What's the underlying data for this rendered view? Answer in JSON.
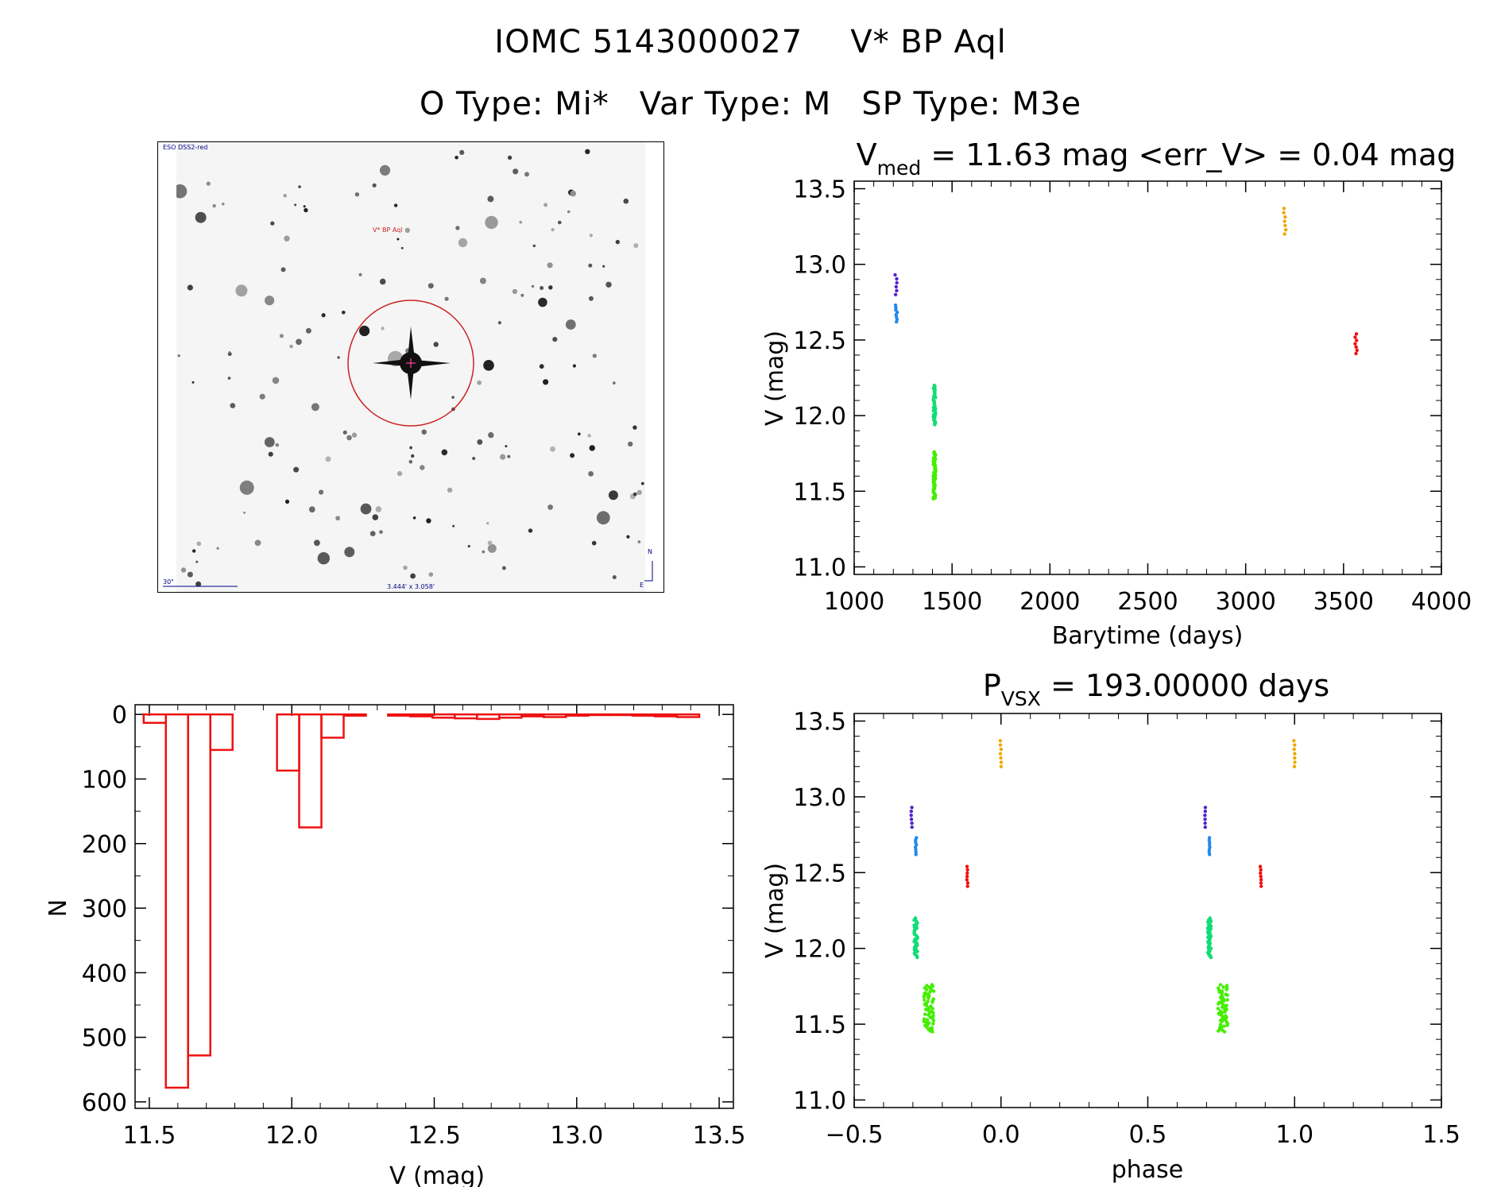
{
  "header": {
    "title_id": "IOMC 5143000027",
    "title_name": "V* BP Aql",
    "otype": "O Type: Mi*",
    "vartype": "Var Type: M",
    "sptype": "SP Type: M3e"
  },
  "sky_image": {
    "survey_label": "ESO DSS2-red",
    "target_label": "V* BP Aql",
    "scale_label": "30\"",
    "fov_label": "3.444' x 3.058'",
    "north_label": "N",
    "east_label": "E",
    "colors": {
      "circle": "#cc2222",
      "labels": "#000088"
    }
  },
  "chart_data": [
    {
      "id": "lightcurve",
      "type": "scatter",
      "title_prefix": "V",
      "title_sub": "med",
      "title_rest": " = 11.63 mag <err_V> = 0.04 mag",
      "xlabel": "Barytime (days)",
      "ylabel": "V (mag)",
      "xlim": [
        1000,
        4000
      ],
      "ylim": [
        13.55,
        10.95
      ],
      "xticks": [
        1000,
        1500,
        2000,
        2500,
        3000,
        3500,
        4000
      ],
      "yticks": [
        11.0,
        11.5,
        12.0,
        12.5,
        13.0,
        13.5
      ],
      "ytick_labels": [
        "11.0",
        "11.5",
        "12.0",
        "12.5",
        "13.0",
        "13.5"
      ],
      "series": [
        {
          "name": "season-1a",
          "color": "#5522cc",
          "x": 1215,
          "ymin": 12.8,
          "ymax": 12.93,
          "n": 6
        },
        {
          "name": "season-1b",
          "color": "#2288ee",
          "x": 1215,
          "ymin": 12.62,
          "ymax": 12.73,
          "n": 8
        },
        {
          "name": "season-2a",
          "color": "#44ee00",
          "x": 1410,
          "ymin": 11.45,
          "ymax": 11.76,
          "n": 60
        },
        {
          "name": "season-2b",
          "color": "#11dd77",
          "x": 1410,
          "ymin": 11.94,
          "ymax": 12.2,
          "n": 40
        },
        {
          "name": "season-3",
          "color": "#eeaa00",
          "x": 3200,
          "ymin": 13.2,
          "ymax": 13.37,
          "n": 7
        },
        {
          "name": "season-4",
          "color": "#ee1111",
          "x": 3565,
          "ymin": 12.41,
          "ymax": 12.54,
          "n": 7
        }
      ]
    },
    {
      "id": "histogram",
      "type": "bar",
      "xlabel": "V (mag)",
      "ylabel": "N",
      "xlim": [
        11.45,
        13.55
      ],
      "ylim": [
        -15,
        610
      ],
      "xticks": [
        11.5,
        12.0,
        12.5,
        13.0,
        13.5
      ],
      "xtick_labels": [
        "11.5",
        "12.0",
        "12.5",
        "13.0",
        "13.5"
      ],
      "yticks": [
        0,
        100,
        200,
        300,
        400,
        500,
        600
      ],
      "bin_width": 0.078,
      "bins": [
        11.48,
        11.558,
        11.636,
        11.714,
        11.792,
        11.87,
        11.948,
        12.026,
        12.104,
        12.182,
        12.26,
        12.338,
        12.416,
        12.494,
        12.572,
        12.65,
        12.728,
        12.806,
        12.884,
        12.962,
        13.04,
        13.118,
        13.196,
        13.274,
        13.352
      ],
      "values": [
        13,
        578,
        528,
        55,
        0,
        0,
        87,
        175,
        36,
        2,
        0,
        2,
        3,
        5,
        6,
        7,
        5,
        3,
        4,
        2,
        1,
        1,
        2,
        3,
        4
      ],
      "color": "#ee1111"
    },
    {
      "id": "phased",
      "type": "scatter",
      "title_prefix": "P",
      "title_sub": "VSX",
      "title_rest": " = 193.00000 days",
      "xlabel": "phase",
      "ylabel": "V (mag)",
      "xlim": [
        -0.5,
        1.5
      ],
      "ylim": [
        13.55,
        10.95
      ],
      "xticks": [
        -0.5,
        0.0,
        0.5,
        1.0,
        1.5
      ],
      "xtick_labels": [
        "−0.5",
        "0.0",
        "0.5",
        "1.0",
        "1.5"
      ],
      "yticks": [
        11.0,
        11.5,
        12.0,
        12.5,
        13.0,
        13.5
      ],
      "ytick_labels": [
        "11.0",
        "11.5",
        "12.0",
        "12.5",
        "13.0",
        "13.5"
      ],
      "series": [
        {
          "name": "season-1a",
          "color": "#5522cc",
          "x": -0.305,
          "ymin": 12.8,
          "ymax": 12.93,
          "n": 6
        },
        {
          "name": "season-1b",
          "color": "#2288ee",
          "x": -0.29,
          "ymin": 12.62,
          "ymax": 12.73,
          "n": 8
        },
        {
          "name": "season-2a",
          "color": "#44ee00",
          "x": -0.245,
          "ymin": 11.45,
          "ymax": 11.76,
          "n": 60,
          "spread": 0.035
        },
        {
          "name": "season-2b",
          "color": "#11dd77",
          "x": -0.29,
          "ymin": 11.94,
          "ymax": 12.2,
          "n": 40,
          "spread": 0.012
        },
        {
          "name": "season-4",
          "color": "#ee1111",
          "x": -0.115,
          "ymin": 12.41,
          "ymax": 12.54,
          "n": 7
        },
        {
          "name": "season-3",
          "color": "#eeaa00",
          "x": -0.001,
          "ymin": 13.2,
          "ymax": 13.37,
          "n": 7
        }
      ]
    }
  ]
}
